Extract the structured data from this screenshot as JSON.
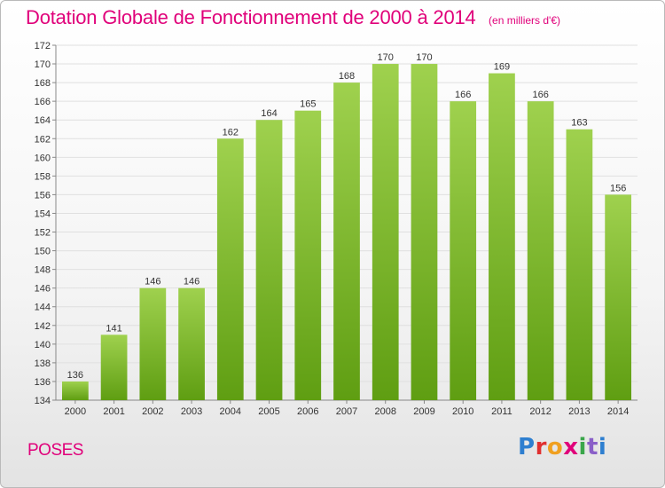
{
  "header": {
    "title": "Dotation Globale de Fonctionnement de 2000 à 2014",
    "subtitle": "(en milliers d'€)"
  },
  "place": "POSES",
  "logo": {
    "text": "Proxiti",
    "letters": [
      "P",
      "r",
      "o",
      "x",
      "i",
      "t",
      "i"
    ]
  },
  "colors": {
    "bar_light": "#9fd14e",
    "bar_dark": "#5f9e12",
    "title": "#e0007a",
    "grid": "#e0e0e0"
  },
  "chart_data": {
    "type": "bar",
    "title": "Dotation Globale de Fonctionnement de 2000 à 2014",
    "subtitle": "(en milliers d'€)",
    "categories": [
      "2000",
      "2001",
      "2002",
      "2003",
      "2004",
      "2005",
      "2006",
      "2007",
      "2008",
      "2009",
      "2010",
      "2011",
      "2012",
      "2013",
      "2014"
    ],
    "values": [
      136,
      141,
      146,
      146,
      162,
      164,
      165,
      168,
      170,
      170,
      166,
      169,
      166,
      163,
      156
    ],
    "ylim": [
      134,
      172
    ],
    "yticks": [
      134,
      136,
      138,
      140,
      142,
      144,
      146,
      148,
      150,
      152,
      154,
      156,
      158,
      160,
      162,
      164,
      166,
      168,
      170,
      172
    ],
    "xlabel": "",
    "ylabel": "",
    "grid": true,
    "legend": "none"
  }
}
